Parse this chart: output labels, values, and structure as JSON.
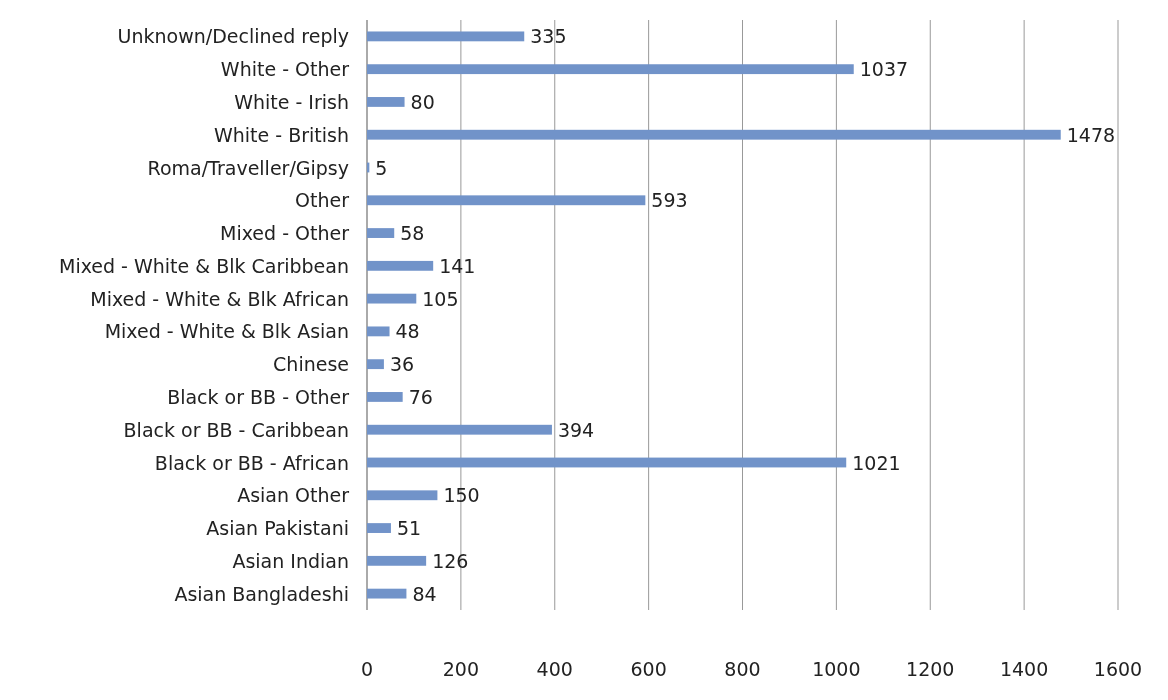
{
  "chart_data": {
    "type": "bar",
    "orientation": "horizontal",
    "categories": [
      "Unknown/Declined reply",
      "White - Other",
      "White - Irish",
      "White - British",
      "Roma/Traveller/Gipsy",
      "Other",
      "Mixed - Other",
      "Mixed - White & Blk Caribbean",
      "Mixed - White & Blk African",
      "Mixed - White & Blk Asian",
      "Chinese",
      "Black or BB - Other",
      "Black or BB - Caribbean",
      "Black or BB - African",
      "Asian Other",
      "Asian Pakistani",
      "Asian Indian",
      "Asian Bangladeshi"
    ],
    "values": [
      335,
      1037,
      80,
      1478,
      5,
      593,
      58,
      141,
      105,
      48,
      36,
      76,
      394,
      1021,
      150,
      51,
      126,
      84
    ],
    "color": "#7193c9",
    "xlim": [
      0,
      1600
    ],
    "xticks": [
      0,
      200,
      400,
      600,
      800,
      1000,
      1200,
      1400,
      1600
    ],
    "grid": "x",
    "data_labels": true
  }
}
